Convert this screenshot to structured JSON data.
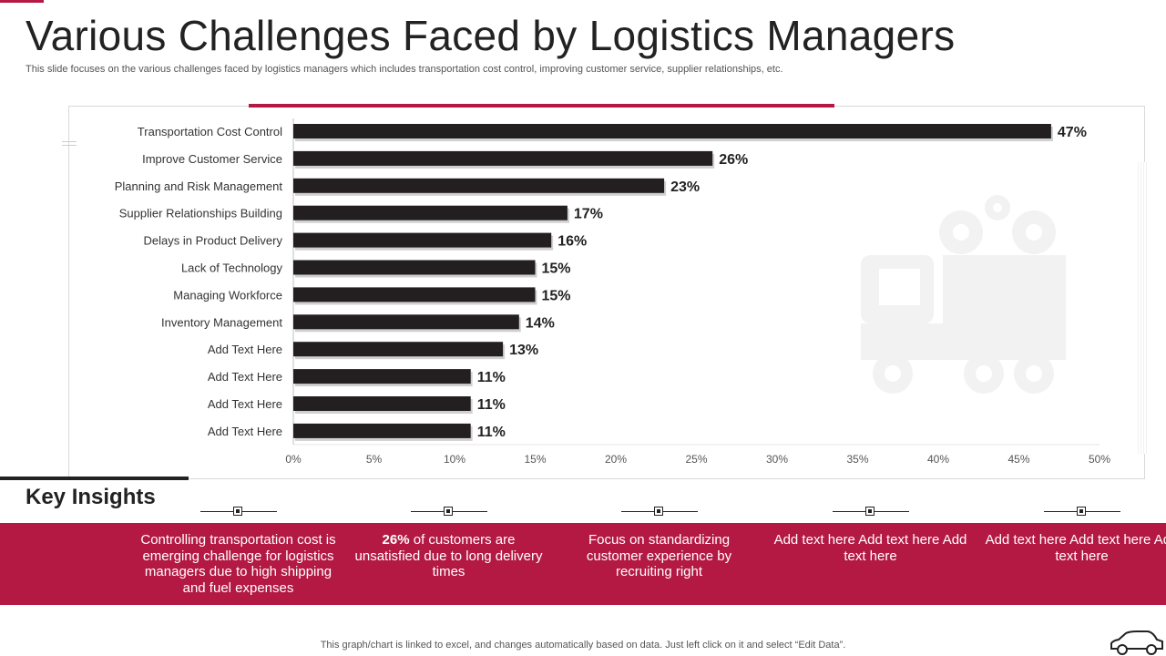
{
  "title": "Various Challenges Faced by Logistics Managers",
  "subtitle": "This slide focuses on the various challenges faced by logistics managers which includes transportation cost control, improving customer service, supplier relationships, etc.",
  "colors": {
    "accent": "#b31942",
    "bar": "#231f20",
    "text": "#222222"
  },
  "chart_data": {
    "type": "bar",
    "orientation": "horizontal",
    "categories": [
      "Transportation Cost Control",
      "Improve Customer Service",
      "Planning and Risk Management",
      "Supplier Relationships Building",
      "Delays in Product Delivery",
      "Lack of Technology",
      "Managing Workforce",
      "Inventory Management",
      "Add Text Here",
      "Add Text Here",
      "Add Text Here",
      "Add Text Here"
    ],
    "values": [
      47,
      26,
      23,
      17,
      16,
      15,
      15,
      14,
      13,
      11,
      11,
      11
    ],
    "data_labels": [
      "47%",
      "26%",
      "23%",
      "17%",
      "16%",
      "15%",
      "15%",
      "14%",
      "13%",
      "11%",
      "11%",
      "11%"
    ],
    "xlim": [
      0,
      50
    ],
    "xticks": [
      0,
      5,
      10,
      15,
      20,
      25,
      30,
      35,
      40,
      45,
      50
    ],
    "xtick_labels": [
      "0%",
      "5%",
      "10%",
      "15%",
      "20%",
      "25%",
      "30%",
      "35%",
      "40%",
      "45%",
      "50%"
    ],
    "grid": false,
    "legend": "none"
  },
  "key_insights": {
    "title": "Key Insights",
    "items": [
      {
        "bold": "",
        "text": "Controlling transportation cost is emerging challenge for logistics managers due to high shipping and fuel expenses"
      },
      {
        "bold": "26%",
        "text": " of customers are unsatisfied due to long delivery times"
      },
      {
        "bold": "",
        "text": "Focus on standardizing customer experience by recruiting right"
      },
      {
        "bold": "",
        "text": "Add text here Add text here Add text here"
      },
      {
        "bold": "",
        "text": "Add text here Add text here Add text here"
      }
    ]
  },
  "footer": "This graph/chart is linked to excel,  and changes automatically based on data. Just left click on it and select “Edit Data”.",
  "icons": {
    "watermark": "truck-gears-icon",
    "corner": "car-icon"
  }
}
